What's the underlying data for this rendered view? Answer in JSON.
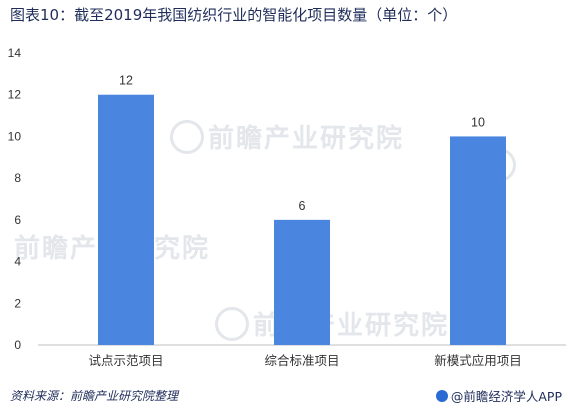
{
  "title": "图表10：截至2019年我国纺织行业的智能化项目数量（单位：个）",
  "source": "资料来源：前瞻产业研究院整理",
  "brand": "@前瞻经济学人APP",
  "watermark": "前瞻产业研究院",
  "colors": {
    "bar": "#4a86e0",
    "title": "#1f2d5a",
    "axis": "#bfbfbf"
  },
  "chart_data": {
    "type": "bar",
    "title": "图表10：截至2019年我国纺织行业的智能化项目数量（单位：个）",
    "categories": [
      "试点示范项目",
      "综合标准项目",
      "新模式应用项目"
    ],
    "values": [
      12,
      6,
      10
    ],
    "xlabel": "",
    "ylabel": "",
    "ylim": [
      0,
      14
    ],
    "yticks": [
      0,
      2,
      4,
      6,
      8,
      10,
      12,
      14
    ],
    "grid": false,
    "legend": "none"
  }
}
